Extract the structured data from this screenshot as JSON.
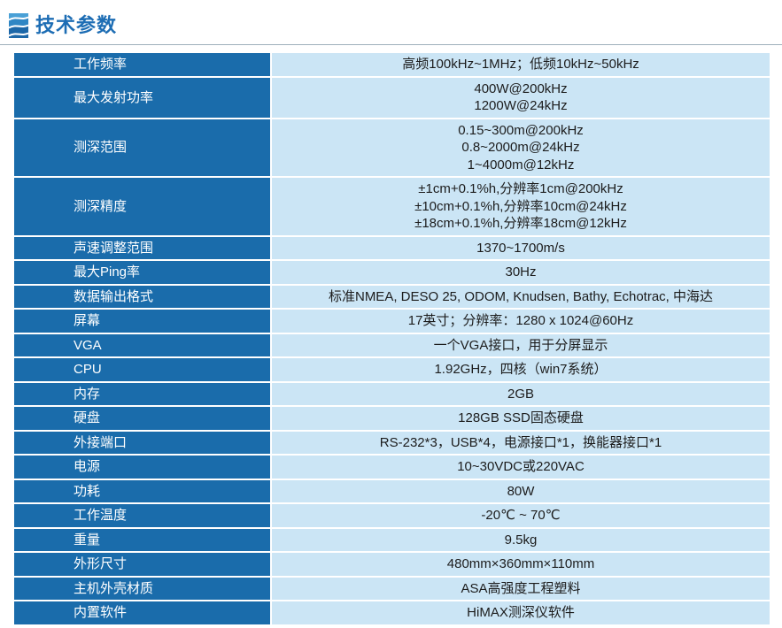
{
  "header": {
    "title": "技术参数",
    "icon": "waves-logo-icon"
  },
  "colors": {
    "label_bg": "#1a6cab",
    "value_bg": "#cbe5f5",
    "title_color": "#1d6db4",
    "value_text": "#1c1c1c",
    "divider": "#9fb0bb"
  },
  "table": {
    "rows": [
      {
        "label": "工作频率",
        "values": [
          "高频100kHz~1MHz；低频10kHz~50kHz"
        ]
      },
      {
        "label": "最大发射功率",
        "values": [
          "400W@200kHz",
          "1200W@24kHz"
        ]
      },
      {
        "label": "测深范围",
        "values": [
          "0.15~300m@200kHz",
          "0.8~2000m@24kHz",
          "1~4000m@12kHz"
        ]
      },
      {
        "label": "测深精度",
        "values": [
          "±1cm+0.1%h,分辨率1cm@200kHz",
          "±10cm+0.1%h,分辨率10cm@24kHz",
          "±18cm+0.1%h,分辨率18cm@12kHz"
        ]
      },
      {
        "label": "声速调整范围",
        "values": [
          "1370~1700m/s"
        ]
      },
      {
        "label": "最大Ping率",
        "values": [
          "30Hz"
        ]
      },
      {
        "label": "数据输出格式",
        "values": [
          "标准NMEA, DESO 25, ODOM, Knudsen, Bathy, Echotrac, 中海达"
        ]
      },
      {
        "label": "屏幕",
        "values": [
          "17英寸；分辨率：1280 x 1024@60Hz"
        ]
      },
      {
        "label": "VGA",
        "values": [
          "一个VGA接口，用于分屏显示"
        ]
      },
      {
        "label": "CPU",
        "values": [
          "1.92GHz，四核（win7系统）"
        ]
      },
      {
        "label": "内存",
        "values": [
          "2GB"
        ]
      },
      {
        "label": "硬盘",
        "values": [
          "128GB SSD固态硬盘"
        ]
      },
      {
        "label": "外接端口",
        "values": [
          "RS-232*3，USB*4，电源接口*1，换能器接口*1"
        ]
      },
      {
        "label": "电源",
        "values": [
          "10~30VDC或220VAC"
        ]
      },
      {
        "label": "功耗",
        "values": [
          "80W"
        ]
      },
      {
        "label": "工作温度",
        "values": [
          "-20℃ ~ 70℃"
        ]
      },
      {
        "label": "重量",
        "values": [
          "9.5kg"
        ]
      },
      {
        "label": "外形尺寸",
        "values": [
          "480mm×360mm×110mm"
        ]
      },
      {
        "label": "主机外壳材质",
        "values": [
          "ASA高强度工程塑料"
        ]
      },
      {
        "label": "内置软件",
        "values": [
          "HiMAX测深仪软件"
        ]
      }
    ]
  }
}
